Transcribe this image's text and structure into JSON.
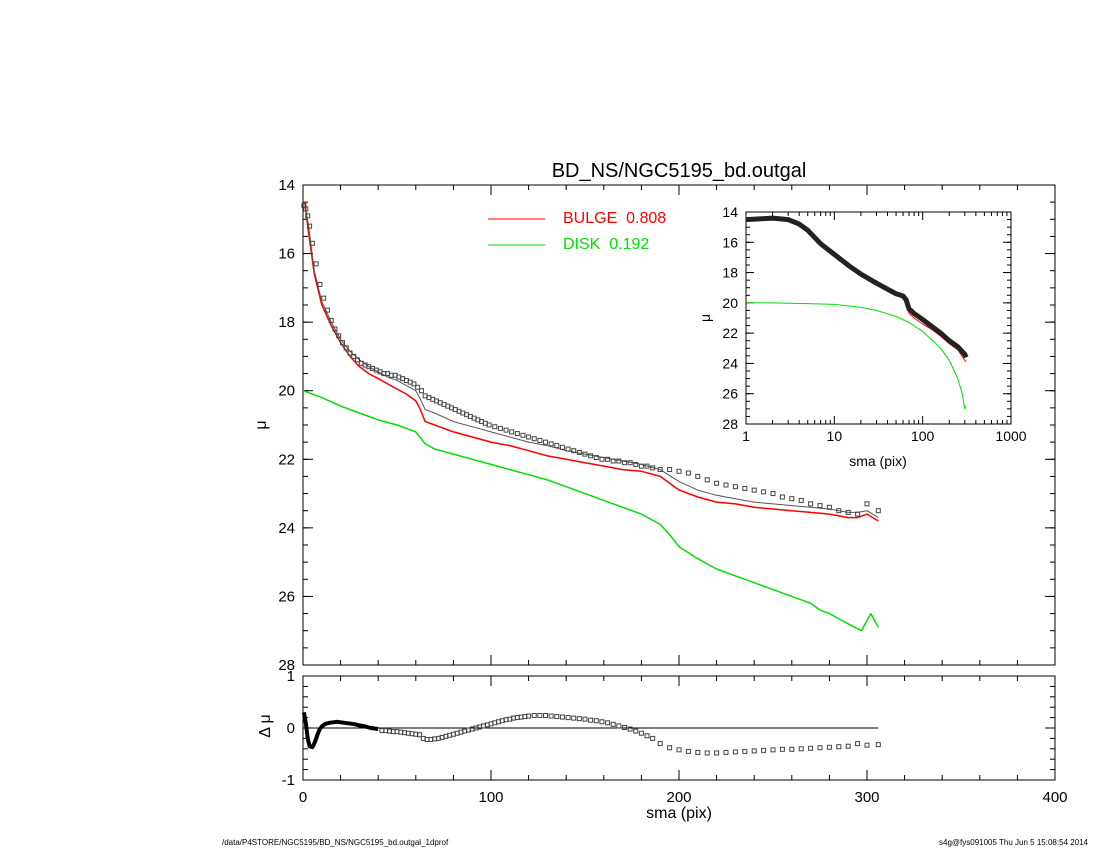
{
  "footer": {
    "left": "/data/P4STORE/NGC5195/BD_NS/NGC5195_bd.outgal_1dprof",
    "right": "s4g@fys091005  Thu Jun  5 15:08:54 2014"
  },
  "colors": {
    "bulge": "#ff0000",
    "disk": "#00e000",
    "model": "#555555",
    "data": "#444444",
    "axes": "#000000"
  },
  "chart_data": [
    {
      "id": "main",
      "type": "line",
      "title": "BD_NS/NGC5195_bd.outgal",
      "xlabel": "",
      "ylabel": "μ",
      "xlim": [
        0,
        400
      ],
      "ylim": [
        28,
        14
      ],
      "y_inverted": true,
      "xticks": [
        0,
        100,
        200,
        300,
        400
      ],
      "yticks": [
        14,
        16,
        18,
        20,
        22,
        24,
        26,
        28
      ],
      "legend": [
        {
          "label": "BULGE  0.808",
          "color": "#ff0000"
        },
        {
          "label": "DISK  0.192",
          "color": "#00e000"
        }
      ],
      "series": [
        {
          "key": "bulge",
          "name": "BULGE",
          "color": "#ff0000",
          "x": [
            1,
            3,
            6,
            10,
            15,
            20,
            25,
            30,
            35,
            40,
            45,
            50,
            55,
            60,
            62,
            65,
            70,
            80,
            90,
            100,
            110,
            120,
            130,
            140,
            150,
            160,
            170,
            180,
            190,
            200,
            210,
            220,
            230,
            240,
            250,
            260,
            270,
            280,
            290,
            295,
            300,
            306
          ],
          "y": [
            14.5,
            15.4,
            16.6,
            17.5,
            18.1,
            18.6,
            19.0,
            19.3,
            19.5,
            19.65,
            19.8,
            19.95,
            20.1,
            20.3,
            20.5,
            20.9,
            21.0,
            21.2,
            21.35,
            21.5,
            21.6,
            21.75,
            21.9,
            22.0,
            22.1,
            22.2,
            22.3,
            22.35,
            22.5,
            22.9,
            23.1,
            23.25,
            23.3,
            23.4,
            23.45,
            23.5,
            23.55,
            23.6,
            23.7,
            23.7,
            23.6,
            23.8
          ]
        },
        {
          "key": "model",
          "name": "Total model",
          "color": "#555555",
          "x": [
            1,
            3,
            6,
            10,
            15,
            20,
            25,
            30,
            35,
            40,
            45,
            50,
            55,
            60,
            62,
            65,
            70,
            80,
            90,
            100,
            110,
            120,
            130,
            140,
            150,
            160,
            170,
            180,
            190,
            200,
            210,
            220,
            230,
            240,
            250,
            260,
            270,
            280,
            290,
            295,
            300,
            306
          ],
          "y": [
            14.6,
            15.2,
            16.5,
            17.4,
            18.0,
            18.5,
            18.85,
            19.1,
            19.3,
            19.45,
            19.6,
            19.7,
            19.85,
            20.0,
            20.2,
            20.55,
            20.65,
            20.9,
            21.05,
            21.2,
            21.35,
            21.5,
            21.6,
            21.75,
            21.85,
            21.95,
            22.05,
            22.15,
            22.3,
            22.65,
            22.9,
            23.05,
            23.15,
            23.25,
            23.3,
            23.35,
            23.4,
            23.45,
            23.55,
            23.55,
            23.5,
            23.7
          ]
        },
        {
          "key": "disk",
          "name": "DISK",
          "color": "#00e000",
          "x": [
            0,
            10,
            20,
            30,
            40,
            50,
            60,
            65,
            70,
            80,
            90,
            100,
            110,
            120,
            130,
            140,
            150,
            160,
            170,
            180,
            190,
            195,
            200,
            210,
            220,
            230,
            240,
            250,
            260,
            270,
            275,
            280,
            290,
            297,
            302,
            306
          ],
          "y": [
            20.0,
            20.2,
            20.45,
            20.65,
            20.85,
            21.0,
            21.2,
            21.55,
            21.7,
            21.85,
            22.0,
            22.15,
            22.3,
            22.45,
            22.6,
            22.8,
            23.0,
            23.2,
            23.4,
            23.6,
            23.9,
            24.2,
            24.55,
            24.9,
            25.2,
            25.4,
            25.6,
            25.8,
            26.0,
            26.2,
            26.4,
            26.5,
            26.8,
            27.0,
            26.5,
            26.9
          ]
        },
        {
          "key": "data",
          "name": "Data",
          "color": "#444444",
          "marker": "square",
          "x": [
            0.5,
            1.5,
            2.5,
            3.5,
            5,
            7,
            9,
            11,
            13,
            15,
            17,
            19,
            21,
            23,
            25,
            27,
            29,
            31,
            33,
            35,
            37,
            39,
            41,
            43,
            45,
            47,
            49,
            51,
            53,
            55,
            57,
            59,
            61,
            63,
            65,
            67,
            69,
            71,
            73,
            75,
            77,
            79,
            81,
            83,
            85,
            87,
            89,
            91,
            93,
            95,
            97,
            99,
            102,
            105,
            108,
            111,
            114,
            117,
            120,
            123,
            126,
            129,
            132,
            135,
            138,
            141,
            144,
            147,
            150,
            153,
            156,
            159,
            162,
            165,
            168,
            171,
            174,
            177,
            180,
            183,
            186,
            190,
            195,
            200,
            205,
            210,
            215,
            220,
            225,
            230,
            235,
            240,
            245,
            250,
            255,
            260,
            265,
            270,
            275,
            280,
            285,
            290,
            295,
            300,
            306
          ],
          "y": [
            14.6,
            14.7,
            14.9,
            15.2,
            15.7,
            16.3,
            16.9,
            17.3,
            17.65,
            17.95,
            18.2,
            18.4,
            18.6,
            18.75,
            18.9,
            19.0,
            19.1,
            19.2,
            19.25,
            19.3,
            19.35,
            19.4,
            19.45,
            19.5,
            19.5,
            19.55,
            19.55,
            19.6,
            19.65,
            19.7,
            19.75,
            19.8,
            19.9,
            20.0,
            20.15,
            20.2,
            20.25,
            20.3,
            20.35,
            20.4,
            20.45,
            20.5,
            20.55,
            20.6,
            20.65,
            20.7,
            20.75,
            20.8,
            20.85,
            20.9,
            20.95,
            21.0,
            21.05,
            21.1,
            21.15,
            21.2,
            21.25,
            21.3,
            21.35,
            21.4,
            21.45,
            21.5,
            21.55,
            21.6,
            21.65,
            21.7,
            21.75,
            21.8,
            21.85,
            21.9,
            21.95,
            22.0,
            22.0,
            22.05,
            22.05,
            22.1,
            22.1,
            22.15,
            22.2,
            22.2,
            22.25,
            22.3,
            22.3,
            22.35,
            22.4,
            22.5,
            22.6,
            22.7,
            22.75,
            22.8,
            22.85,
            22.9,
            22.95,
            23.0,
            23.1,
            23.15,
            23.2,
            23.3,
            23.35,
            23.4,
            23.5,
            23.55,
            23.6,
            23.3,
            23.5
          ]
        }
      ]
    },
    {
      "id": "inset",
      "type": "line",
      "xlabel": "sma (pix)",
      "ylabel": "μ",
      "xscale": "log",
      "xlim": [
        1,
        1000
      ],
      "ylim": [
        28,
        14
      ],
      "y_inverted": true,
      "xticks": [
        1,
        10,
        100,
        1000
      ],
      "yticks": [
        14,
        16,
        18,
        20,
        22,
        24,
        26,
        28
      ],
      "series": [
        {
          "key": "disk",
          "name": "DISK",
          "color": "#00e000",
          "x": [
            1,
            2,
            5,
            10,
            20,
            30,
            50,
            70,
            100,
            130,
            160,
            200,
            250,
            280,
            300,
            310
          ],
          "y": [
            20.0,
            20.0,
            20.05,
            20.1,
            20.3,
            20.5,
            20.9,
            21.3,
            21.9,
            22.5,
            23.0,
            23.8,
            25.0,
            26.0,
            27.0,
            26.8
          ]
        },
        {
          "key": "bulge",
          "name": "BULGE",
          "color": "#ff0000",
          "x": [
            1,
            1.5,
            2,
            3,
            4,
            5,
            7,
            10,
            15,
            20,
            30,
            40,
            50,
            60,
            65,
            70,
            80,
            100,
            130,
            160,
            200,
            250,
            300,
            310
          ],
          "y": [
            14.6,
            14.5,
            14.45,
            14.6,
            14.9,
            15.3,
            16.2,
            16.9,
            17.7,
            18.2,
            18.8,
            19.2,
            19.5,
            19.7,
            20.0,
            20.7,
            21.0,
            21.4,
            21.8,
            22.2,
            22.7,
            23.1,
            23.8,
            23.9
          ]
        },
        {
          "key": "model",
          "name": "Total model",
          "color": "#222222",
          "width": 5,
          "x": [
            1,
            1.5,
            2,
            3,
            4,
            5,
            7,
            10,
            15,
            20,
            30,
            40,
            50,
            60,
            65,
            70,
            80,
            100,
            130,
            160,
            200,
            250,
            300,
            310
          ],
          "y": [
            14.5,
            14.45,
            14.4,
            14.5,
            14.8,
            15.2,
            16.1,
            16.8,
            17.6,
            18.1,
            18.7,
            19.1,
            19.4,
            19.55,
            19.8,
            20.4,
            20.7,
            21.1,
            21.6,
            22.0,
            22.5,
            22.9,
            23.4,
            23.6
          ]
        }
      ]
    },
    {
      "id": "residual",
      "type": "scatter",
      "xlabel": "sma (pix)",
      "ylabel": "Δ μ",
      "xlim": [
        0,
        400
      ],
      "ylim": [
        -1,
        1
      ],
      "xticks": [
        0,
        100,
        200,
        300,
        400
      ],
      "yticks": [
        -1,
        0,
        1
      ],
      "zero_line": {
        "x": [
          0,
          306
        ],
        "y": 0
      },
      "series": [
        {
          "key": "residual-thick",
          "name": "Residual",
          "color": "#000000",
          "style": "thick-line",
          "x": [
            0.5,
            1.5,
            2.5,
            3.5,
            5,
            6,
            7,
            8,
            9,
            10,
            11,
            12,
            14,
            16,
            18,
            20,
            22,
            24,
            26,
            28,
            30,
            33,
            36,
            40
          ],
          "y": [
            0.3,
            0.1,
            -0.2,
            -0.35,
            -0.37,
            -0.3,
            -0.2,
            -0.1,
            -0.02,
            0.03,
            0.06,
            0.08,
            0.1,
            0.11,
            0.12,
            0.11,
            0.1,
            0.09,
            0.08,
            0.07,
            0.05,
            0.03,
            0.0,
            -0.02
          ]
        },
        {
          "key": "residual-points",
          "name": "Residual",
          "color": "#444444",
          "marker": "square",
          "x": [
            42,
            44,
            46,
            48,
            50,
            52,
            54,
            56,
            58,
            60,
            62,
            64,
            66,
            68,
            70,
            72,
            74,
            76,
            78,
            80,
            82,
            84,
            86,
            88,
            90,
            92,
            94,
            96,
            98,
            100,
            102,
            104,
            106,
            108,
            110,
            112,
            114,
            116,
            118,
            120,
            123,
            126,
            129,
            132,
            135,
            138,
            141,
            144,
            147,
            150,
            153,
            156,
            159,
            162,
            165,
            168,
            171,
            174,
            177,
            180,
            183,
            186,
            190,
            195,
            200,
            205,
            210,
            215,
            220,
            225,
            230,
            235,
            240,
            245,
            250,
            255,
            260,
            265,
            270,
            275,
            280,
            285,
            290,
            295,
            300,
            306
          ],
          "y": [
            -0.05,
            -0.05,
            -0.06,
            -0.07,
            -0.07,
            -0.08,
            -0.09,
            -0.1,
            -0.11,
            -0.12,
            -0.13,
            -0.2,
            -0.22,
            -0.22,
            -0.21,
            -0.2,
            -0.18,
            -0.16,
            -0.14,
            -0.12,
            -0.1,
            -0.08,
            -0.06,
            -0.04,
            -0.02,
            0.0,
            0.02,
            0.04,
            0.06,
            0.08,
            0.1,
            0.12,
            0.14,
            0.16,
            0.17,
            0.19,
            0.2,
            0.21,
            0.22,
            0.23,
            0.24,
            0.24,
            0.24,
            0.23,
            0.22,
            0.21,
            0.2,
            0.19,
            0.18,
            0.17,
            0.15,
            0.14,
            0.12,
            0.1,
            0.07,
            0.04,
            0.01,
            -0.02,
            -0.06,
            -0.1,
            -0.15,
            -0.2,
            -0.3,
            -0.38,
            -0.42,
            -0.45,
            -0.47,
            -0.48,
            -0.48,
            -0.47,
            -0.46,
            -0.45,
            -0.44,
            -0.43,
            -0.42,
            -0.41,
            -0.41,
            -0.4,
            -0.39,
            -0.38,
            -0.37,
            -0.36,
            -0.35,
            -0.3,
            -0.33,
            -0.32
          ]
        }
      ]
    }
  ]
}
